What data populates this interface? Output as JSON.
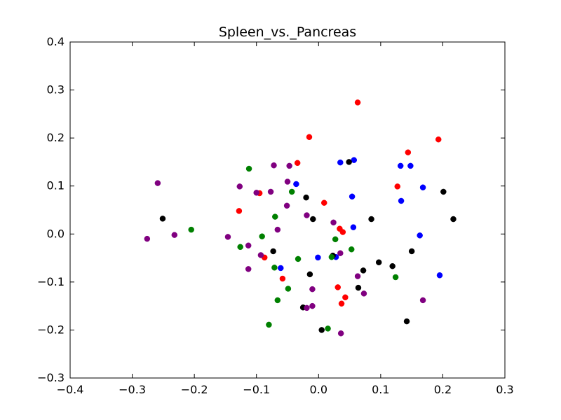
{
  "chart_data": {
    "type": "scatter",
    "title": "Spleen_vs._Pancreas",
    "xlabel": "",
    "ylabel": "",
    "xlim": [
      -0.4,
      0.3
    ],
    "ylim": [
      -0.3,
      0.4
    ],
    "xticks": [
      "−0.4",
      "−0.3",
      "−0.2",
      "−0.1",
      "0.0",
      "0.1",
      "0.2",
      "0.3"
    ],
    "yticks": [
      "−0.3",
      "−0.2",
      "−0.1",
      "0.0",
      "0.1",
      "0.2",
      "0.3",
      "0.4"
    ],
    "xtick_values": [
      -0.4,
      -0.3,
      -0.2,
      -0.1,
      0.0,
      0.1,
      0.2,
      0.3
    ],
    "ytick_values": [
      -0.3,
      -0.2,
      -0.1,
      0.0,
      0.1,
      0.2,
      0.3,
      0.4
    ],
    "grid": false,
    "series": [
      {
        "color": "#ff0000",
        "points": [
          [
            0.063,
            0.274
          ],
          [
            -0.015,
            0.202
          ],
          [
            0.193,
            0.197
          ],
          [
            0.144,
            0.17
          ],
          [
            -0.034,
            0.148
          ],
          [
            0.127,
            0.099
          ],
          [
            -0.095,
            0.085
          ],
          [
            0.009,
            0.065
          ],
          [
            -0.128,
            0.048
          ],
          [
            0.034,
            0.011
          ],
          [
            0.039,
            0.004
          ],
          [
            -0.087,
            -0.049
          ],
          [
            -0.058,
            -0.093
          ],
          [
            0.031,
            -0.111
          ],
          [
            0.043,
            -0.132
          ],
          [
            0.037,
            -0.145
          ]
        ]
      },
      {
        "color": "#0000ff",
        "points": [
          [
            0.057,
            0.154
          ],
          [
            0.035,
            0.149
          ],
          [
            0.132,
            0.142
          ],
          [
            0.148,
            0.142
          ],
          [
            -0.036,
            0.104
          ],
          [
            0.168,
            0.097
          ],
          [
            0.054,
            0.078
          ],
          [
            0.133,
            0.069
          ],
          [
            0.056,
            0.014
          ],
          [
            0.163,
            -0.003
          ],
          [
            -0.001,
            -0.049
          ],
          [
            0.028,
            -0.048
          ],
          [
            -0.061,
            -0.071
          ],
          [
            0.195,
            -0.086
          ]
        ]
      },
      {
        "color": "#000000",
        "points": [
          [
            0.049,
            0.15
          ],
          [
            0.201,
            0.088
          ],
          [
            -0.02,
            0.076
          ],
          [
            0.217,
            0.031
          ],
          [
            -0.251,
            0.032
          ],
          [
            -0.009,
            0.031
          ],
          [
            0.085,
            0.031
          ],
          [
            -0.073,
            -0.036
          ],
          [
            0.15,
            -0.036
          ],
          [
            0.023,
            -0.045
          ],
          [
            0.097,
            -0.059
          ],
          [
            0.119,
            -0.067
          ],
          [
            0.072,
            -0.076
          ],
          [
            -0.014,
            -0.084
          ],
          [
            0.064,
            -0.112
          ],
          [
            -0.025,
            -0.153
          ],
          [
            0.142,
            -0.182
          ],
          [
            0.005,
            -0.2
          ]
        ]
      },
      {
        "color": "#008000",
        "points": [
          [
            -0.112,
            0.136
          ],
          [
            -0.043,
            0.088
          ],
          [
            -0.07,
            0.036
          ],
          [
            -0.205,
            0.009
          ],
          [
            -0.091,
            -0.005
          ],
          [
            0.027,
            -0.011
          ],
          [
            -0.126,
            -0.027
          ],
          [
            0.053,
            -0.032
          ],
          [
            0.021,
            -0.048
          ],
          [
            -0.033,
            -0.052
          ],
          [
            -0.071,
            -0.07
          ],
          [
            0.124,
            -0.09
          ],
          [
            -0.049,
            -0.114
          ],
          [
            -0.066,
            -0.138
          ],
          [
            -0.08,
            -0.189
          ],
          [
            0.015,
            -0.197
          ]
        ]
      },
      {
        "color": "#800080",
        "points": [
          [
            -0.259,
            0.106
          ],
          [
            -0.072,
            0.143
          ],
          [
            -0.047,
            0.142
          ],
          [
            -0.05,
            0.109
          ],
          [
            -0.127,
            0.099
          ],
          [
            -0.1,
            0.086
          ],
          [
            -0.077,
            0.088
          ],
          [
            -0.051,
            0.059
          ],
          [
            -0.019,
            0.039
          ],
          [
            0.024,
            0.024
          ],
          [
            -0.066,
            0.009
          ],
          [
            -0.232,
            -0.002
          ],
          [
            -0.146,
            -0.006
          ],
          [
            -0.276,
            -0.01
          ],
          [
            -0.113,
            -0.024
          ],
          [
            0.035,
            -0.04
          ],
          [
            -0.093,
            -0.044
          ],
          [
            -0.113,
            -0.073
          ],
          [
            0.063,
            -0.088
          ],
          [
            0.073,
            -0.124
          ],
          [
            -0.01,
            -0.115
          ],
          [
            0.168,
            -0.138
          ],
          [
            -0.01,
            -0.15
          ],
          [
            -0.019,
            -0.154
          ],
          [
            0.036,
            -0.207
          ]
        ]
      }
    ]
  }
}
